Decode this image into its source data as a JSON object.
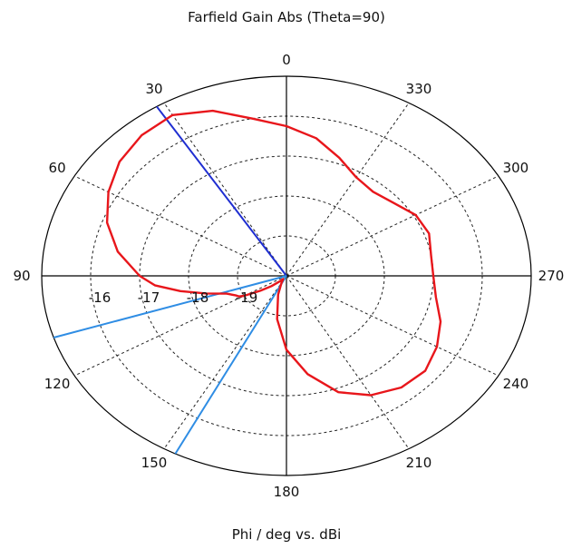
{
  "chart_data": {
    "type": "polar-line",
    "title": "Farfield Gain Abs (Theta=90)",
    "xlabel": "Phi / deg vs. dBi",
    "angle_direction": "counterclockwise",
    "zero_angle_position": "top",
    "angle_tick_labels": [
      "0",
      "30",
      "60",
      "90",
      "120",
      "150",
      "180",
      "210",
      "240",
      "270",
      "300",
      "330"
    ],
    "radial_axis": {
      "range_dbi": [
        -20,
        -15
      ],
      "tick_values": [
        -19,
        -18,
        -17,
        -16
      ],
      "tick_labels": [
        "-19",
        "-18",
        "-17",
        "-16"
      ],
      "grid": "dashed"
    },
    "series": [
      {
        "color": "#e8161b",
        "phi_deg": [
          0,
          10,
          20,
          30,
          40,
          50,
          60,
          70,
          80,
          90,
          95,
          100,
          105,
          110,
          115,
          118,
          120,
          125,
          130,
          135,
          140,
          150,
          160,
          170,
          180,
          190,
          200,
          210,
          220,
          230,
          240,
          250,
          260,
          270,
          280,
          290,
          300,
          310,
          320,
          330,
          340,
          350,
          360
        ],
        "gain_dbi": [
          -16.25,
          -16.0,
          -15.6,
          -15.35,
          -15.4,
          -15.55,
          -15.8,
          -16.1,
          -16.5,
          -17.0,
          -17.3,
          -17.8,
          -18.3,
          -18.7,
          -18.85,
          -18.9,
          -19.0,
          -19.35,
          -19.6,
          -19.8,
          -19.9,
          -19.8,
          -19.5,
          -18.9,
          -18.15,
          -17.5,
          -16.9,
          -16.55,
          -16.35,
          -16.3,
          -16.45,
          -16.65,
          -16.9,
          -17.0,
          -17.0,
          -16.9,
          -16.95,
          -17.15,
          -17.25,
          -17.15,
          -16.85,
          -16.5,
          -16.25
        ]
      }
    ],
    "markers": [
      {
        "phi_deg": 32,
        "gain_dbi": -15,
        "color": "#1f2ed1"
      },
      {
        "phi_deg": 108,
        "gain_dbi": -15,
        "color": "#2f8de4"
      },
      {
        "phi_deg": 153,
        "gain_dbi": -15,
        "color": "#2f8de4"
      }
    ],
    "colors": {
      "axis": "#000000",
      "grid": "#222222"
    }
  }
}
